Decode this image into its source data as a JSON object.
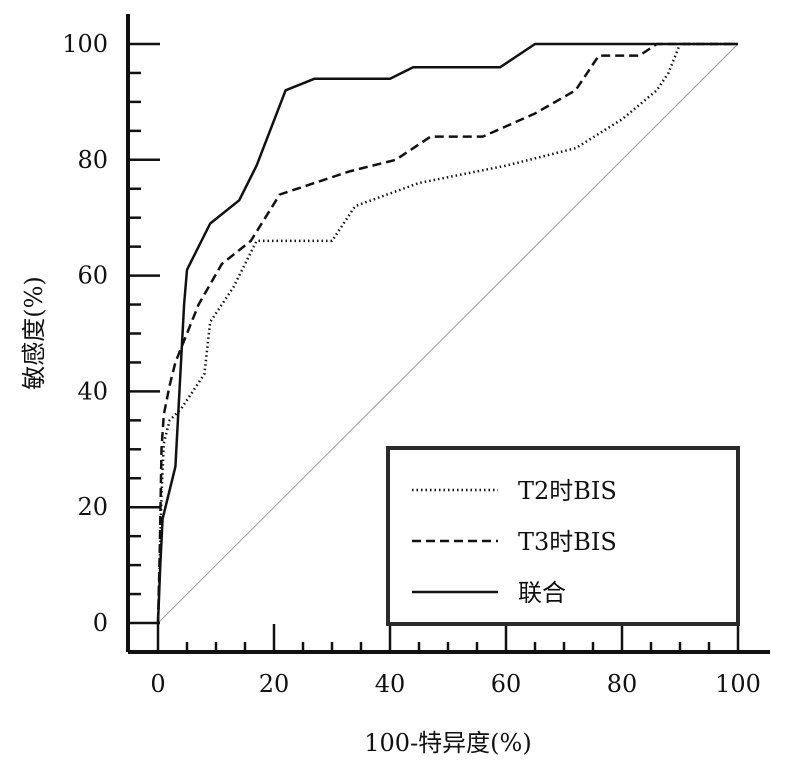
{
  "chart_data": {
    "type": "line",
    "xlabel": "100-特异度(%)",
    "ylabel": "敏感度(%)",
    "xlim": [
      0,
      100
    ],
    "ylim": [
      0,
      100
    ],
    "x_ticks": [
      0,
      20,
      40,
      60,
      80,
      100
    ],
    "y_ticks": [
      0,
      20,
      40,
      60,
      80,
      100
    ],
    "x_tick_labels": [
      "0",
      "20",
      "40",
      "60",
      "80",
      "100"
    ],
    "y_tick_labels": [
      "0",
      "20",
      "40",
      "60",
      "80",
      "100"
    ],
    "grid": false,
    "legend_position": "bottom-right",
    "reference_line": {
      "x": [
        0,
        100
      ],
      "y": [
        0,
        100
      ]
    },
    "series": [
      {
        "name": "T2时BIS",
        "style": "dotted",
        "x": [
          0,
          0.3,
          0.6,
          1,
          2,
          4,
          6,
          8,
          9,
          13,
          17,
          21,
          30,
          34,
          45,
          60,
          72,
          80,
          86,
          88,
          90,
          100
        ],
        "y": [
          0,
          10,
          22,
          31,
          35,
          37,
          40,
          43,
          52,
          58,
          66,
          66,
          66,
          72,
          76,
          79,
          82,
          87,
          92,
          95,
          100,
          100
        ]
      },
      {
        "name": "T3时BIS",
        "style": "dashed",
        "x": [
          0,
          0.3,
          0.6,
          1,
          2,
          3,
          5,
          7,
          11,
          16,
          21,
          33,
          41,
          47,
          56,
          65,
          72,
          76,
          83,
          86,
          100
        ],
        "y": [
          0,
          12,
          30,
          36,
          41,
          45,
          50,
          55,
          62,
          66,
          74,
          78,
          80,
          84,
          84,
          88,
          92,
          98,
          98,
          100,
          100
        ]
      },
      {
        "name": "联合",
        "style": "solid",
        "x": [
          0,
          0.4,
          0.8,
          3,
          4.5,
          5,
          6,
          9,
          14,
          17,
          22,
          27,
          40,
          44,
          59,
          65,
          100
        ],
        "y": [
          0,
          10,
          18,
          27,
          55,
          61,
          63,
          69,
          73,
          79,
          92,
          94,
          94,
          96,
          96,
          100,
          100
        ]
      }
    ]
  }
}
